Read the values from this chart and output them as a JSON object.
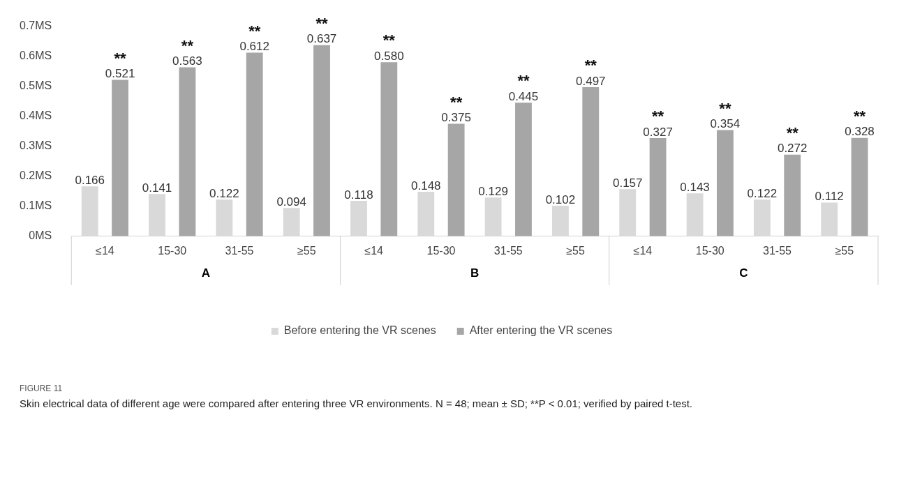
{
  "chart_data": {
    "type": "bar",
    "categories": [
      "≤14",
      "15-30",
      "31-55",
      "≥55",
      "≤14",
      "15-30",
      "31-55",
      "≥55",
      "≤14",
      "15-30",
      "31-55",
      "≥55"
    ],
    "series": [
      {
        "name": "Before entering the VR scenes",
        "color": "#d9d9d9",
        "values": [
          0.166,
          0.141,
          0.122,
          0.094,
          0.118,
          0.148,
          0.129,
          0.102,
          0.157,
          0.143,
          0.122,
          0.112
        ]
      },
      {
        "name": "After entering the VR scenes",
        "color": "#a6a6a6",
        "values": [
          0.521,
          0.563,
          0.612,
          0.637,
          0.58,
          0.375,
          0.445,
          0.497,
          0.327,
          0.354,
          0.272,
          0.328
        ],
        "value_labels": [
          "0.521",
          "0.563",
          "0.612",
          "0.637",
          "0.580",
          "0.375",
          "0.445",
          "0.497",
          "0.327",
          "0.354",
          "0.272",
          "0.328"
        ]
      }
    ],
    "ylim": [
      0,
      0.7
    ],
    "yticks": [
      {
        "value": 0,
        "label": "0MS"
      },
      {
        "value": 0.1,
        "label": "0.1MS"
      },
      {
        "value": 0.2,
        "label": "0.2MS"
      },
      {
        "value": 0.3,
        "label": "0.3MS"
      },
      {
        "value": 0.4,
        "label": "0.4MS"
      },
      {
        "value": 0.5,
        "label": "0.5MS"
      },
      {
        "value": 0.6,
        "label": "0.6MS"
      },
      {
        "value": 0.7,
        "label": "0.7MS"
      }
    ],
    "grid": false,
    "legend": "bottom",
    "data_labels": true,
    "annotations": [
      "**",
      "**",
      "**",
      "**",
      "**",
      "**",
      "**",
      "**",
      "**",
      "**",
      "**",
      "**",
      "A",
      "B",
      "C",
      "FIGURE 11",
      "Skin electrical data of different age were compared after entering three VR environments. N = 48; mean ± SD; **P < 0.01; verified by paired t-test."
    ]
  }
}
